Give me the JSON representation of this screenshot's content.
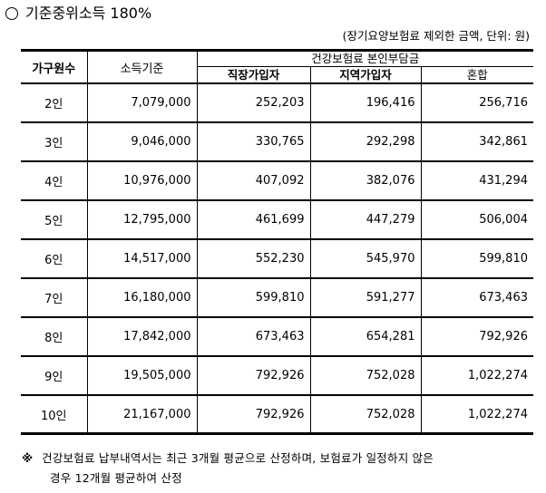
{
  "title": "기준중위소득 180%",
  "unit_note": "(장기요양보험료 제외한 금액, 단위: 원)",
  "table": {
    "headers": {
      "household": "가구원수",
      "income": "소득기준",
      "group": "건강보험료 본인부담금",
      "employee": "직장가입자",
      "regional": "지역가입자",
      "mixed": "혼합"
    },
    "rows": [
      {
        "household": "2인",
        "income": "7,079,000",
        "employee": "252,203",
        "regional": "196,416",
        "mixed": "256,716"
      },
      {
        "household": "3인",
        "income": "9,046,000",
        "employee": "330,765",
        "regional": "292,298",
        "mixed": "342,861"
      },
      {
        "household": "4인",
        "income": "10,976,000",
        "employee": "407,092",
        "regional": "382,076",
        "mixed": "431,294"
      },
      {
        "household": "5인",
        "income": "12,795,000",
        "employee": "461,699",
        "regional": "447,279",
        "mixed": "506,004"
      },
      {
        "household": "6인",
        "income": "14,517,000",
        "employee": "552,230",
        "regional": "545,970",
        "mixed": "599,810"
      },
      {
        "household": "7인",
        "income": "16,180,000",
        "employee": "599,810",
        "regional": "591,277",
        "mixed": "673,463"
      },
      {
        "household": "8인",
        "income": "17,842,000",
        "employee": "673,463",
        "regional": "654,281",
        "mixed": "792,926"
      },
      {
        "household": "9인",
        "income": "19,505,000",
        "employee": "792,926",
        "regional": "752,028",
        "mixed": "1,022,274"
      },
      {
        "household": "10인",
        "income": "21,167,000",
        "employee": "792,926",
        "regional": "752,028",
        "mixed": "1,022,274"
      }
    ]
  },
  "footnote": {
    "mark": "※",
    "line1": "건강보험료 납부내역서는 최근 3개월 평균으로 산정하며, 보험료가 일정하지 않은",
    "line2": "경우 12개월 평균하여 산정"
  }
}
